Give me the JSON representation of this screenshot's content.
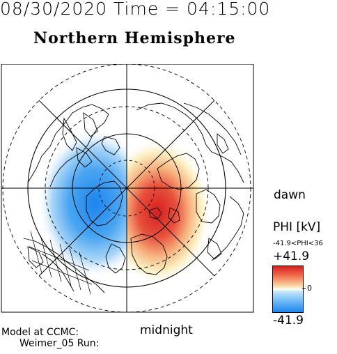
{
  "header": {
    "datetime": "08/30/2020 Time = 04:15:00",
    "hemisphere": "Northern Hemisphere"
  },
  "map": {
    "projection": "polar stereographic, north pole",
    "gridlines": "latitude circles and longitude spokes every 45 degrees",
    "coastlines": true,
    "labels": {
      "dawn": "dawn",
      "midnight": "midnight"
    },
    "potential_pattern": {
      "positive_cell": "dawn side (right), red",
      "negative_cell": "dusk side (left), blue"
    }
  },
  "colorbar": {
    "title": "PHI [kV]",
    "range_text": "-41.9<PHI<36",
    "max_label": "+41.9",
    "zero_label": "0",
    "min_label": "-41.9",
    "colors": {
      "max": "#d61f1f",
      "mid": "#fffff0",
      "min": "#1c84ee"
    }
  },
  "footer": {
    "model_line1": "Model at CCMC:",
    "model_line2": "Weimer_05 Run:"
  }
}
